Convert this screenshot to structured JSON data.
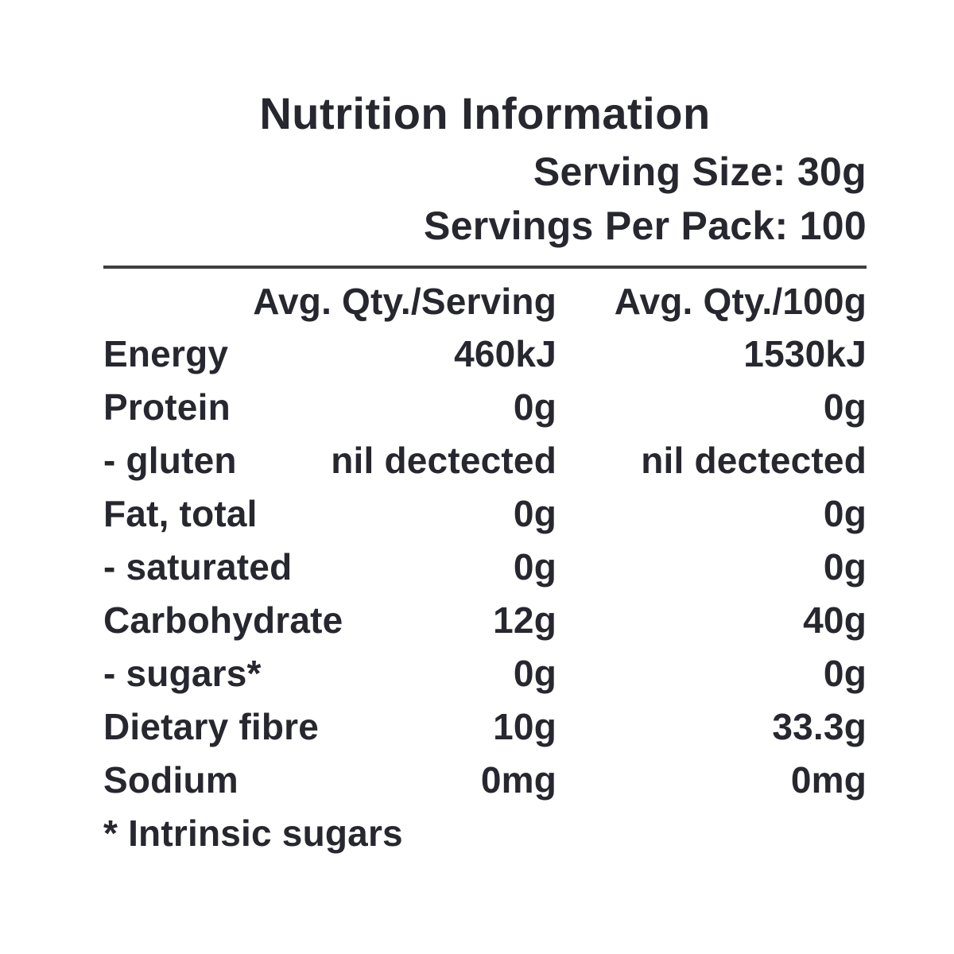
{
  "panel": {
    "title": "Nutrition Information",
    "serving_size": "Serving Size: 30g",
    "servings_per_pack": "Servings Per Pack: 100",
    "footnote": "* Intrinsic sugars"
  },
  "table": {
    "columns": [
      "Avg. Qty./Serving",
      "Avg. Qty./100g"
    ],
    "rows": [
      {
        "label": "Energy",
        "per_serving": "460kJ",
        "per_100g": "1530kJ"
      },
      {
        "label": "Protein",
        "per_serving": "0g",
        "per_100g": "0g"
      },
      {
        "label": "- gluten",
        "per_serving": "nil dectected",
        "per_100g": "nil dectected"
      },
      {
        "label": "Fat, total",
        "per_serving": "0g",
        "per_100g": "0g"
      },
      {
        "label": "- saturated",
        "per_serving": "0g",
        "per_100g": "0g"
      },
      {
        "label": "Carbohydrate",
        "per_serving": "12g",
        "per_100g": "40g"
      },
      {
        "label": "- sugars*",
        "per_serving": "0g",
        "per_100g": "0g"
      },
      {
        "label": "Dietary fibre",
        "per_serving": "10g",
        "per_100g": "33.3g"
      },
      {
        "label": "Sodium",
        "per_serving": "0mg",
        "per_100g": "0mg"
      }
    ]
  },
  "colors": {
    "text": "#27272f",
    "rule": "#3f3f3f",
    "background": "#ffffff"
  }
}
